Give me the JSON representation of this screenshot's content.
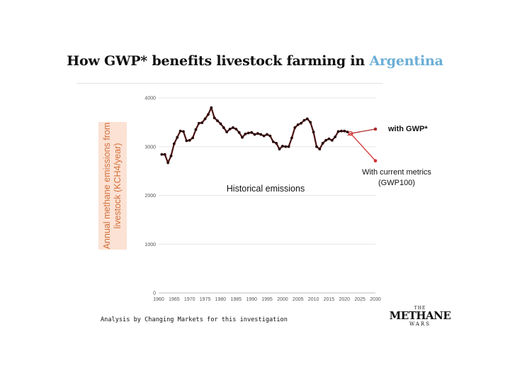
{
  "title": {
    "prefix": "How GWP* benefits livestock farming in ",
    "highlight": "Argentina",
    "highlight_color": "#6aaed6"
  },
  "source_note": "Analysis by Changing Markets for this investigation",
  "logo": {
    "top": "THE",
    "main": "METHANE",
    "bottom": "WARS"
  },
  "chart_data": {
    "type": "line",
    "title": "How GWP* benefits livestock farming in Argentina",
    "xlabel": "",
    "ylabel": "Annual methane emissions from livestock (KCH4/year)",
    "xlim": [
      1960,
      2030
    ],
    "ylim": [
      0,
      4000
    ],
    "xticks": [
      1960,
      1965,
      1970,
      1975,
      1980,
      1985,
      1990,
      1995,
      2000,
      2005,
      2010,
      2015,
      2020,
      2025,
      2030
    ],
    "yticks": [
      0,
      1000,
      2000,
      3000,
      4000
    ],
    "grid": "horizontal",
    "series": [
      {
        "name": "Historical emissions",
        "color": "#4a1212",
        "x": [
          1961,
          1962,
          1963,
          1964,
          1965,
          1966,
          1967,
          1968,
          1969,
          1970,
          1971,
          1972,
          1973,
          1974,
          1975,
          1976,
          1977,
          1978,
          1979,
          1980,
          1981,
          1982,
          1983,
          1984,
          1985,
          1986,
          1987,
          1988,
          1989,
          1990,
          1991,
          1992,
          1993,
          1994,
          1995,
          1996,
          1997,
          1998,
          1999,
          2000,
          2001,
          2002,
          2003,
          2004,
          2005,
          2006,
          2007,
          2008,
          2009,
          2010,
          2011,
          2012,
          2013,
          2014,
          2015,
          2016,
          2017,
          2018,
          2019,
          2020,
          2021
        ],
        "y": [
          2840,
          2840,
          2670,
          2810,
          3060,
          3190,
          3320,
          3310,
          3120,
          3130,
          3180,
          3350,
          3480,
          3490,
          3570,
          3660,
          3800,
          3590,
          3530,
          3470,
          3390,
          3300,
          3360,
          3390,
          3360,
          3290,
          3190,
          3260,
          3280,
          3290,
          3250,
          3270,
          3250,
          3220,
          3250,
          3220,
          3100,
          3070,
          2950,
          3010,
          3000,
          3000,
          3180,
          3390,
          3450,
          3480,
          3540,
          3570,
          3500,
          3300,
          3000,
          2950,
          3070,
          3130,
          3160,
          3130,
          3200,
          3310,
          3320,
          3320,
          3300
        ]
      },
      {
        "name": "with GWP*",
        "color": "#b02a2a",
        "x": [
          2021,
          2022,
          2030
        ],
        "y": [
          3230,
          3270,
          3360
        ]
      },
      {
        "name": "With current metrics (GWP100)",
        "color": "#d43030",
        "x": [
          2022,
          2030
        ],
        "y": [
          3270,
          2710
        ]
      }
    ],
    "annotations": {
      "historical": "Historical emissions",
      "gwp_star": "with GWP*",
      "gwp100_line1": "With current metrics",
      "gwp100_line2": "(GWP100)"
    }
  }
}
